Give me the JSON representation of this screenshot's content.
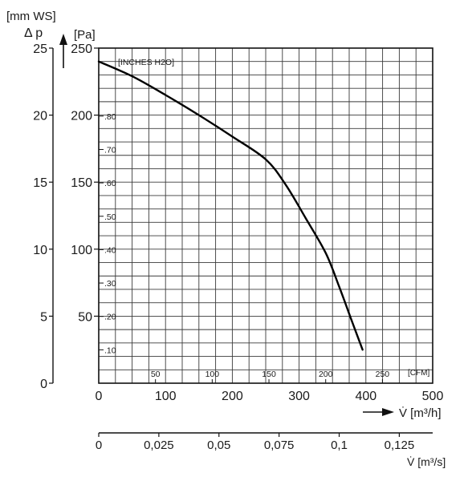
{
  "chart_data": {
    "type": "line",
    "pa_axis": {
      "unit": "[Pa]",
      "range": [
        0,
        250
      ],
      "ticks": [
        "50",
        "100",
        "150",
        "200",
        "250"
      ]
    },
    "mmws_axis": {
      "unit": "[mm WS]",
      "symbol": "Δ p",
      "range": [
        0,
        25
      ],
      "ticks": [
        "0",
        "5",
        "10",
        "15",
        "20",
        "25"
      ]
    },
    "inches_axis": {
      "unit": "[INCHES H2O]",
      "range": [
        0,
        1.0
      ],
      "ticks": [
        ".10",
        ".20",
        ".30",
        ".40",
        ".50",
        ".60",
        ".70",
        ".80"
      ],
      "tick_values": [
        0.1,
        0.2,
        0.3,
        0.4,
        0.5,
        0.6,
        0.7,
        0.8
      ]
    },
    "m3h_axis": {
      "unit": "V̇ [m³/h]",
      "range": [
        0,
        500
      ],
      "ticks": [
        "0",
        "100",
        "200",
        "300",
        "400",
        "500"
      ]
    },
    "cfm_axis": {
      "unit": "[CFM]",
      "ticks": [
        "50",
        "100",
        "150",
        "200",
        "250"
      ],
      "tick_values": [
        50,
        100,
        150,
        200,
        250
      ]
    },
    "m3s_axis": {
      "unit": "V̇ [m³/s]",
      "range": [
        0,
        0.139
      ],
      "ticks": [
        "0",
        "0,025",
        "0,05",
        "0,075",
        "0,1",
        "0,125"
      ],
      "tick_values": [
        0,
        0.025,
        0.05,
        0.075,
        0.1,
        0.125
      ]
    },
    "grid": true,
    "series": [
      {
        "x": [
          0,
          50,
          100,
          150,
          200,
          250,
          280,
          310,
          340,
          360,
          380,
          395
        ],
        "y": [
          240,
          229,
          215,
          200,
          184,
          167,
          148,
          123,
          97,
          72,
          45,
          25
        ]
      }
    ]
  }
}
